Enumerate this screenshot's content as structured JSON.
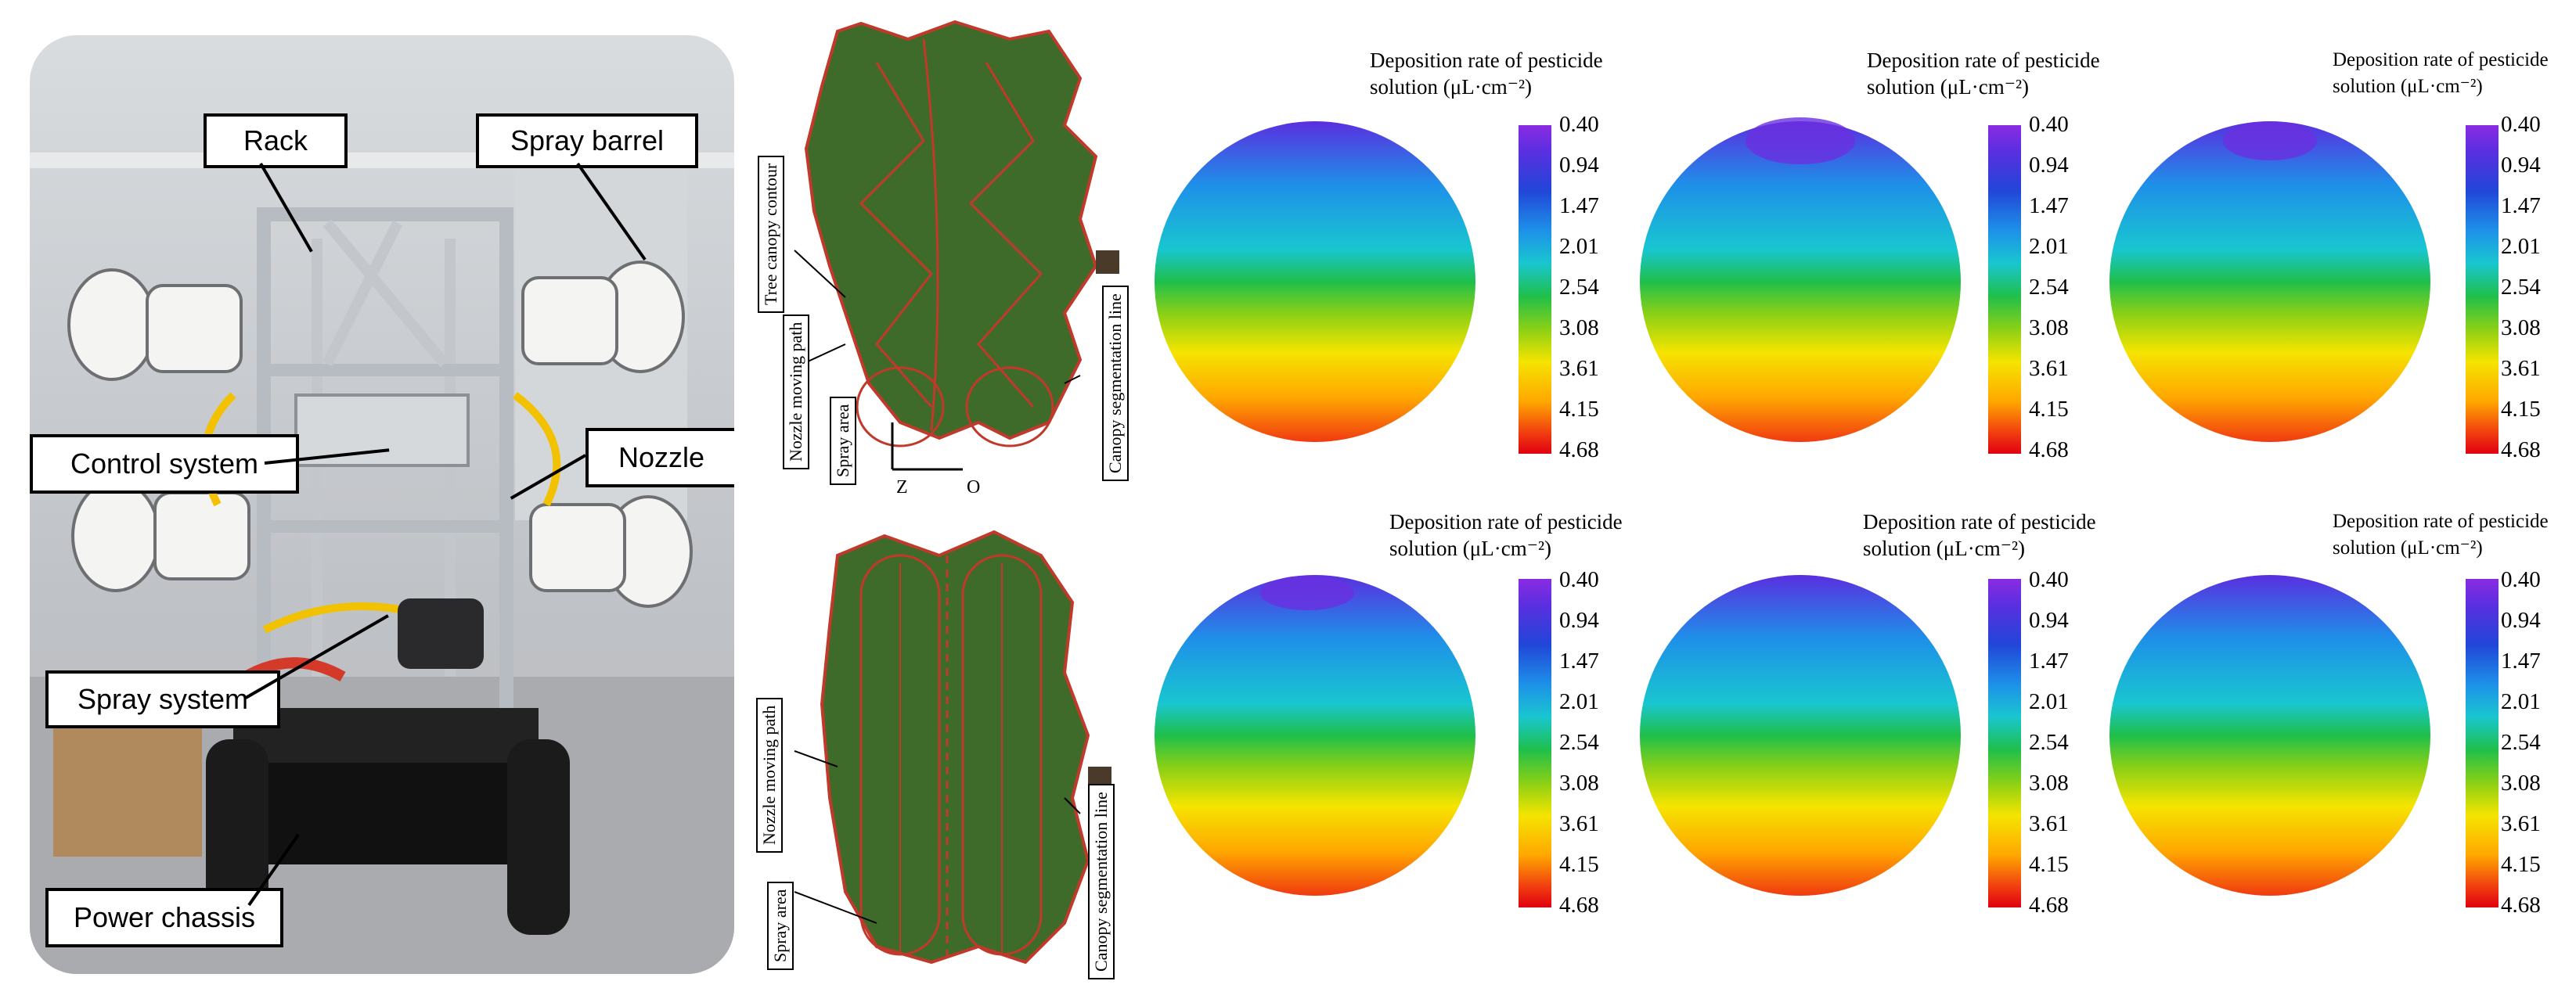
{
  "photo_labels": {
    "rack": "Rack",
    "spray_barrel": "Spray barrel",
    "control_system": "Control system",
    "nozzle": "Nozzle",
    "spray_system": "Spray system",
    "power_chassis": "Power chassis"
  },
  "tree_labels": {
    "tree_canopy_contour": "Tree canopy contour",
    "nozzle_moving_path": "Nozzle moving path",
    "spray_area": "Spray area",
    "canopy_segmentation_line": "Canopy segmentation line",
    "axis_z": "Z",
    "axis_o": "O"
  },
  "colorbar": {
    "title_line1": "Deposition rate of pesticide",
    "title_line2": "solution (μL·cm⁻²)",
    "ticks": [
      "0.40",
      "0.94",
      "1.47",
      "2.01",
      "2.54",
      "3.08",
      "3.61",
      "4.15",
      "4.68"
    ]
  },
  "colors": {
    "contour_red": "#c0392b",
    "foliage": "#3f6b2a",
    "bar_low": "#8a2be2",
    "bar_high": "#e00010"
  }
}
